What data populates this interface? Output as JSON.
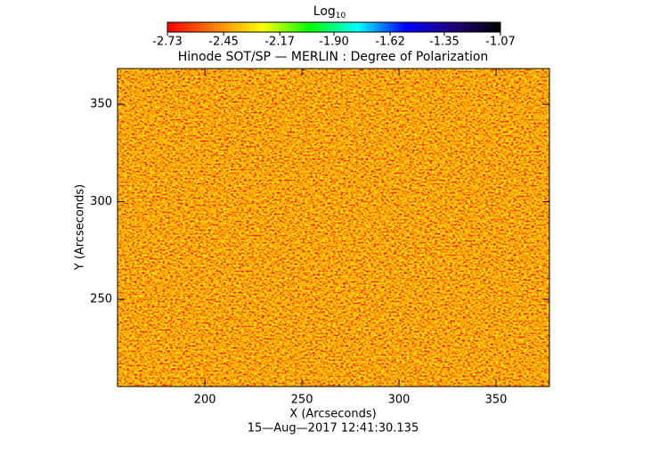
{
  "chart_data": {
    "type": "heatmap",
    "title": "Hinode SOT/SP — MERLIN : Degree of Polarization",
    "x_label": "X (Arcseconds)",
    "y_label": "Y (Arcseconds)",
    "footer": "15—Aug—2017 12:41:30.135",
    "colorbar_label": "Log",
    "colorbar_label_sub": "10",
    "colorbar_lim": [
      -2.73,
      -1.07
    ],
    "colorbar_ticks": [
      -2.73,
      -2.45,
      -2.17,
      {
        "value": -1.9,
        "label": "-1.90"
      },
      -1.62,
      -1.35,
      -1.07
    ],
    "colorscale": [
      "#ff0000",
      "#ff8000",
      "#ffff00",
      "#00ff00",
      "#00ffff",
      "#0000ff",
      "#20007a",
      "#000000"
    ],
    "xlim": [
      155,
      377.5
    ],
    "xticks": [
      200,
      250,
      300,
      350
    ],
    "ylim": [
      205.3,
      368.3
    ],
    "yticks": [
      250,
      300,
      350
    ]
  }
}
